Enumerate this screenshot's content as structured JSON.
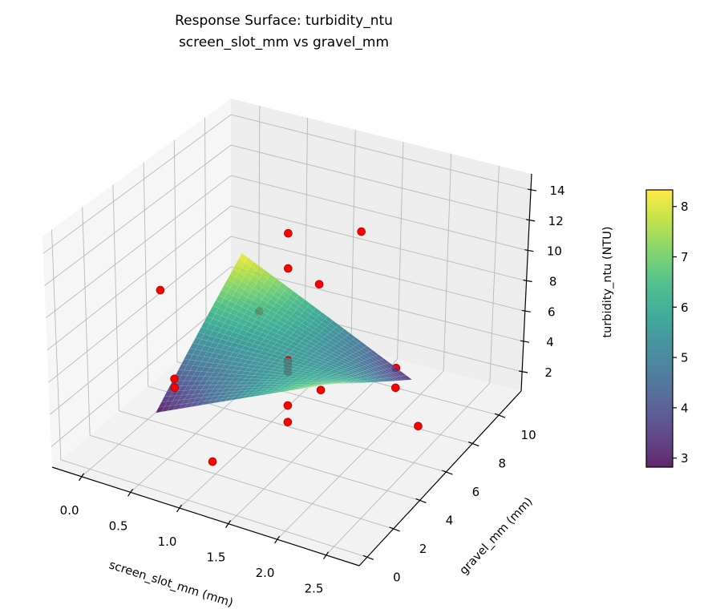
{
  "chart_data": {
    "type": "surface3d",
    "title": "Response Surface: turbidity_ntu",
    "subtitle": "screen_slot_mm vs gravel_mm",
    "xlabel": "screen_slot_mm (mm)",
    "ylabel": "gravel_mm (mm)",
    "zlabel": "turbidity_ntu (NTU)",
    "xlim": [
      -0.3,
      2.84
    ],
    "ylim": [
      -0.6,
      11.7
    ],
    "zlim": [
      0.73,
      15.06
    ],
    "xticks": [
      "0.0",
      "0.5",
      "1.0",
      "1.5",
      "2.0",
      "2.5"
    ],
    "yticks": [
      "0",
      "2",
      "4",
      "6",
      "8",
      "10"
    ],
    "zticks": [
      "2",
      "4",
      "6",
      "8",
      "10",
      "12",
      "14"
    ],
    "grid": true,
    "surface": {
      "x": [
        0.3,
        2.1
      ],
      "y": [
        2.6,
        8.6
      ],
      "z": [
        [
          2.8,
          8.0
        ],
        [
          8.3,
          3.1
        ]
      ],
      "colormap": "viridis",
      "alpha": 0.85
    },
    "colorbar": {
      "range": [
        2.82,
        8.33
      ],
      "ticks": [
        "3",
        "4",
        "5",
        "6",
        "7",
        "8"
      ],
      "placement": "right"
    },
    "scatter": {
      "color": "#ff0000",
      "edge_color": "#8b0000",
      "points": [
        [
          1.23,
          5.6,
          13.55
        ],
        [
          1.23,
          5.6,
          11.3
        ],
        [
          1.23,
          5.6,
          5.4
        ],
        [
          1.23,
          5.6,
          5.09
        ],
        [
          1.23,
          5.6,
          4.68
        ],
        [
          1.23,
          5.6,
          2.52
        ],
        [
          1.23,
          5.6,
          1.45
        ],
        [
          -0.09,
          5.6,
          7.56
        ],
        [
          1.54,
          8.6,
          11.78
        ],
        [
          1.11,
          8.6,
          7.64
        ],
        [
          0.48,
          8.6,
          4.83
        ],
        [
          0.41,
          3.2,
          4.68
        ],
        [
          0.41,
          3.2,
          4.12
        ],
        [
          1.93,
          8.6,
          3.57
        ],
        [
          1.93,
          8.6,
          2.29
        ],
        [
          2.0,
          2.6,
          7.42
        ],
        [
          2.59,
          5.6,
          3.6
        ],
        [
          1.19,
          0.5,
          3.1
        ]
      ]
    }
  }
}
